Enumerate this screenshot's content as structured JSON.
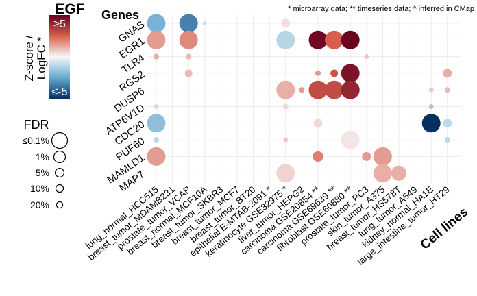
{
  "chart_data": {
    "type": "scatter",
    "title": "EGF",
    "note": "* microarray data; ** timeseries data; ^ inferred in CMap",
    "ylabel": "Genes",
    "xlabel": "Cell lines",
    "genes": [
      "GNAS",
      "EGR1",
      "TLR4",
      "RGS2",
      "DUSP6",
      "ATP6V1D",
      "CDC20",
      "PUF60",
      "MAMLD1",
      "MAP7"
    ],
    "cell_lines": [
      "lung_normal_HCC515",
      "breast_tumor_MDAMB231",
      "prostate_tumor_VCAP",
      "breast_normal_MCF10A",
      "breast_tumor_SKBR3",
      "breast_tumor_MCF7",
      "breast_tumor_BT20",
      "epithelial E-MTAB-2091 *",
      "keratinocyte GSE32975 *",
      "liver_tumor_HEPG2",
      "carcinoma GSE20854 **",
      "carcinoma GSE69639 **",
      "fibroblast GSE60880 **",
      "prostate_tumor_PC3",
      "skin_tumor_A375",
      "breast_tumor_HS578T",
      "lung_tumor_A549",
      "kidney_normal_HA1E",
      "large_intestine_tumor_HT29"
    ],
    "color_legend": {
      "label": "Z-score /\nLogFC *",
      "min_label": "≤-5",
      "max_label": "≥5",
      "min": -5,
      "max": 5,
      "low_color": "#053061",
      "mid_color": "#f7f7f7",
      "high_color": "#67001f"
    },
    "size_legend": {
      "label": "FDR",
      "entries": [
        {
          "label": "≤0.1%",
          "fdr": 0.001
        },
        {
          "label": "1%",
          "fdr": 0.01
        },
        {
          "label": "5%",
          "fdr": 0.05
        },
        {
          "label": "10%",
          "fdr": 0.1
        },
        {
          "label": "20%",
          "fdr": 0.2
        }
      ]
    },
    "points": [
      {
        "gene": "GNAS",
        "cell": "lung_normal_HCC515",
        "z": -2.2,
        "fdr": 0.001
      },
      {
        "gene": "GNAS",
        "cell": "prostate_tumor_VCAP",
        "z": -3.3,
        "fdr": 0.001
      },
      {
        "gene": "GNAS",
        "cell": "breast_normal_MCF10A",
        "z": -0.8,
        "fdr": 1
      },
      {
        "gene": "GNAS",
        "cell": "keratinocyte GSE32975 *",
        "z": 0.4,
        "fdr": 0.1
      },
      {
        "gene": "EGR1",
        "cell": "lung_normal_HCC515",
        "z": 1.5,
        "fdr": 0.001
      },
      {
        "gene": "EGR1",
        "cell": "prostate_tumor_VCAP",
        "z": 1.8,
        "fdr": 0.001
      },
      {
        "gene": "EGR1",
        "cell": "keratinocyte GSE32975 *",
        "z": -1.1,
        "fdr": 0.001
      },
      {
        "gene": "EGR1",
        "cell": "carcinoma GSE20854 **",
        "z": 4.8,
        "fdr": 0.001
      },
      {
        "gene": "EGR1",
        "cell": "carcinoma GSE69639 **",
        "z": 2.5,
        "fdr": 0.001
      },
      {
        "gene": "EGR1",
        "cell": "fibroblast GSE60880 **",
        "z": 4.9,
        "fdr": 0.001
      },
      {
        "gene": "TLR4",
        "cell": "lung_normal_HCC515",
        "z": 1.2,
        "fdr": 0.5
      },
      {
        "gene": "TLR4",
        "cell": "prostate_tumor_VCAP",
        "z": 1.0,
        "fdr": 0.5
      },
      {
        "gene": "TLR4",
        "cell": "prostate_tumor_PC3",
        "z": 0.8,
        "fdr": 0.8
      },
      {
        "gene": "RGS2",
        "cell": "prostate_tumor_VCAP",
        "z": 1.0,
        "fdr": 0.2
      },
      {
        "gene": "RGS2",
        "cell": "carcinoma GSE20854 **",
        "z": 1.5,
        "fdr": 0.5
      },
      {
        "gene": "RGS2",
        "cell": "carcinoma GSE69639 **",
        "z": 2.8,
        "fdr": 0.2
      },
      {
        "gene": "RGS2",
        "cell": "fibroblast GSE60880 **",
        "z": 4.5,
        "fdr": 0.001
      },
      {
        "gene": "RGS2",
        "cell": "large_intestine_tumor_HT29",
        "z": 1.2,
        "fdr": 0.1
      },
      {
        "gene": "DUSP6",
        "cell": "keratinocyte GSE32975 *",
        "z": 1.2,
        "fdr": 0.001
      },
      {
        "gene": "DUSP6",
        "cell": "liver_tumor_HEPG2",
        "z": 1.5,
        "fdr": 0.5
      },
      {
        "gene": "DUSP6",
        "cell": "carcinoma GSE20854 **",
        "z": 3.0,
        "fdr": 0.001
      },
      {
        "gene": "DUSP6",
        "cell": "carcinoma GSE69639 **",
        "z": 3.0,
        "fdr": 0.001
      },
      {
        "gene": "DUSP6",
        "cell": "fibroblast GSE60880 **",
        "z": 4.0,
        "fdr": 0.001
      },
      {
        "gene": "DUSP6",
        "cell": "kidney_normal_HA1E",
        "z": 0.8,
        "fdr": 0.8
      },
      {
        "gene": "DUSP6",
        "cell": "large_intestine_tumor_HT29",
        "z": 1.0,
        "fdr": 0.5
      },
      {
        "gene": "ATP6V1D",
        "cell": "lung_normal_HCC515",
        "z": -0.8,
        "fdr": 0.8
      },
      {
        "gene": "ATP6V1D",
        "cell": "keratinocyte GSE32975 *",
        "z": 0.5,
        "fdr": 0.5
      },
      {
        "gene": "ATP6V1D",
        "cell": "kidney_normal_HA1E",
        "z": -1.5,
        "fdr": 0.8
      },
      {
        "gene": "CDC20",
        "cell": "lung_normal_HCC515",
        "z": -1.8,
        "fdr": 0.001
      },
      {
        "gene": "CDC20",
        "cell": "carcinoma GSE20854 **",
        "z": 0.5,
        "fdr": 0.1
      },
      {
        "gene": "CDC20",
        "cell": "kidney_normal_HA1E",
        "z": -5,
        "fdr": 0.001
      },
      {
        "gene": "CDC20",
        "cell": "large_intestine_tumor_HT29",
        "z": -1.0,
        "fdr": 0.1
      },
      {
        "gene": "PUF60",
        "cell": "lung_normal_HCC515",
        "z": -1.0,
        "fdr": 0.5
      },
      {
        "gene": "PUF60",
        "cell": "keratinocyte GSE32975 *",
        "z": 0.8,
        "fdr": 0.8
      },
      {
        "gene": "PUF60",
        "cell": "fibroblast GSE60880 **",
        "z": 0.3,
        "fdr": 0.001
      },
      {
        "gene": "PUF60",
        "cell": "large_intestine_tumor_HT29",
        "z": -1.0,
        "fdr": 0.5
      },
      {
        "gene": "MAMLD1",
        "cell": "lung_normal_HCC515",
        "z": 1.5,
        "fdr": 0.001
      },
      {
        "gene": "MAMLD1",
        "cell": "carcinoma GSE20854 **",
        "z": 2.0,
        "fdr": 0.05
      },
      {
        "gene": "MAMLD1",
        "cell": "prostate_tumor_PC3",
        "z": 1.5,
        "fdr": 0.1
      },
      {
        "gene": "MAMLD1",
        "cell": "skin_tumor_A375",
        "z": 1.5,
        "fdr": 0.001
      },
      {
        "gene": "MAP7",
        "cell": "keratinocyte GSE32975 *",
        "z": 0.6,
        "fdr": 0.001
      },
      {
        "gene": "MAP7",
        "cell": "skin_tumor_A375",
        "z": 1.2,
        "fdr": 0.001
      },
      {
        "gene": "MAP7",
        "cell": "breast_tumor_HS578T",
        "z": 1.2,
        "fdr": 0.005
      }
    ]
  }
}
